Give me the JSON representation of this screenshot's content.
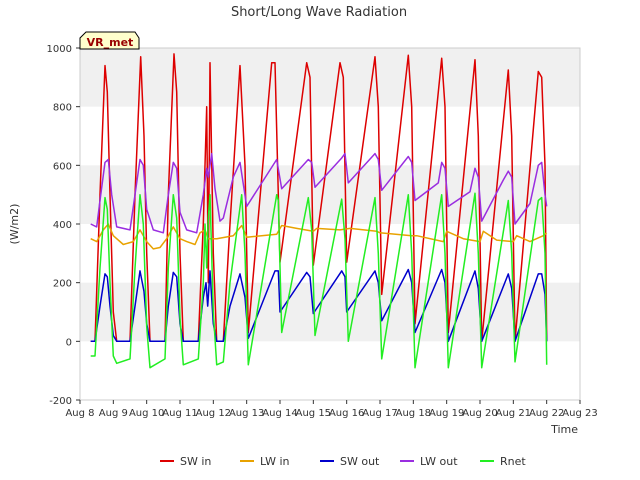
{
  "chart_data": {
    "type": "line",
    "title": "Short/Long Wave Radiation",
    "xlabel": "Time",
    "ylabel": "(W/m2)",
    "station_label": "VR_met",
    "xlim": [
      8,
      23
    ],
    "ylim": [
      -200,
      1000
    ],
    "grid": "horizontal bands",
    "legend_position": "bottom",
    "x_ticks": [
      {
        "value": 8,
        "label": "Aug 8"
      },
      {
        "value": 9,
        "label": "Aug 9"
      },
      {
        "value": 10,
        "label": "Aug 10"
      },
      {
        "value": 11,
        "label": "Aug 11"
      },
      {
        "value": 12,
        "label": "Aug 12"
      },
      {
        "value": 13,
        "label": "Aug 13"
      },
      {
        "value": 14,
        "label": "Aug 14"
      },
      {
        "value": 15,
        "label": "Aug 15"
      },
      {
        "value": 16,
        "label": "Aug 16"
      },
      {
        "value": 17,
        "label": "Aug 17"
      },
      {
        "value": 18,
        "label": "Aug 18"
      },
      {
        "value": 19,
        "label": "Aug 19"
      },
      {
        "value": 20,
        "label": "Aug 20"
      },
      {
        "value": 21,
        "label": "Aug 21"
      },
      {
        "value": 22,
        "label": "Aug 22"
      },
      {
        "value": 23,
        "label": "Aug 23"
      }
    ],
    "y_ticks": [
      -200,
      0,
      200,
      400,
      600,
      800,
      1000
    ],
    "series": [
      {
        "name": "SW in",
        "color": "#dd0000",
        "points": [
          [
            8.32,
            0
          ],
          [
            8.45,
            0
          ],
          [
            8.6,
            500
          ],
          [
            8.75,
            940
          ],
          [
            8.82,
            850
          ],
          [
            8.9,
            500
          ],
          [
            9.0,
            100
          ],
          [
            9.1,
            0
          ],
          [
            9.5,
            0
          ],
          [
            9.65,
            500
          ],
          [
            9.82,
            970
          ],
          [
            9.92,
            700
          ],
          [
            10.0,
            300
          ],
          [
            10.1,
            0
          ],
          [
            10.55,
            0
          ],
          [
            10.65,
            500
          ],
          [
            10.82,
            980
          ],
          [
            10.9,
            850
          ],
          [
            11.0,
            300
          ],
          [
            11.1,
            0
          ],
          [
            11.55,
            0
          ],
          [
            11.7,
            400
          ],
          [
            11.8,
            800
          ],
          [
            11.85,
            200
          ],
          [
            11.9,
            950
          ],
          [
            12.0,
            300
          ],
          [
            12.1,
            0
          ],
          [
            12.3,
            0
          ],
          [
            12.5,
            400
          ],
          [
            12.8,
            940
          ],
          [
            12.95,
            600
          ],
          [
            13.05,
            30
          ],
          [
            13.75,
            950
          ],
          [
            13.85,
            950
          ],
          [
            14.0,
            270
          ],
          [
            14.8,
            950
          ],
          [
            14.9,
            900
          ],
          [
            15.0,
            260
          ],
          [
            15.8,
            950
          ],
          [
            15.9,
            900
          ],
          [
            16.0,
            270
          ],
          [
            16.85,
            970
          ],
          [
            16.95,
            800
          ],
          [
            17.05,
            160
          ],
          [
            17.85,
            975
          ],
          [
            17.95,
            800
          ],
          [
            18.05,
            60
          ],
          [
            18.85,
            965
          ],
          [
            18.95,
            800
          ],
          [
            19.05,
            30
          ],
          [
            19.85,
            960
          ],
          [
            19.95,
            700
          ],
          [
            20.05,
            0
          ],
          [
            20.85,
            925
          ],
          [
            20.95,
            700
          ],
          [
            21.05,
            0
          ],
          [
            21.75,
            920
          ],
          [
            21.85,
            900
          ],
          [
            21.95,
            600
          ],
          [
            22.0,
            0
          ]
        ]
      },
      {
        "name": "LW in",
        "color": "#e8a200",
        "points": [
          [
            8.32,
            350
          ],
          [
            8.5,
            340
          ],
          [
            8.7,
            380
          ],
          [
            8.85,
            400
          ],
          [
            9.0,
            360
          ],
          [
            9.3,
            330
          ],
          [
            9.6,
            340
          ],
          [
            9.8,
            380
          ],
          [
            10.0,
            340
          ],
          [
            10.2,
            315
          ],
          [
            10.4,
            320
          ],
          [
            10.6,
            350
          ],
          [
            10.8,
            390
          ],
          [
            11.0,
            350
          ],
          [
            11.2,
            340
          ],
          [
            11.45,
            330
          ],
          [
            11.6,
            370
          ],
          [
            11.75,
            380
          ],
          [
            11.85,
            350
          ],
          [
            12.1,
            350
          ],
          [
            12.6,
            360
          ],
          [
            12.85,
            395
          ],
          [
            13.0,
            355
          ],
          [
            13.9,
            365
          ],
          [
            14.05,
            395
          ],
          [
            14.5,
            385
          ],
          [
            15.0,
            375
          ],
          [
            15.1,
            385
          ],
          [
            15.8,
            380
          ],
          [
            16.1,
            385
          ],
          [
            16.9,
            375
          ],
          [
            17.0,
            370
          ],
          [
            17.95,
            360
          ],
          [
            18.1,
            360
          ],
          [
            18.9,
            340
          ],
          [
            19.0,
            375
          ],
          [
            19.5,
            350
          ],
          [
            20.0,
            340
          ],
          [
            20.1,
            375
          ],
          [
            20.5,
            345
          ],
          [
            21.0,
            340
          ],
          [
            21.1,
            360
          ],
          [
            21.5,
            340
          ],
          [
            21.9,
            360
          ],
          [
            22.0,
            370
          ]
        ]
      },
      {
        "name": "SW out",
        "color": "#0000cc",
        "points": [
          [
            8.32,
            0
          ],
          [
            8.45,
            0
          ],
          [
            8.6,
            120
          ],
          [
            8.75,
            230
          ],
          [
            8.82,
            220
          ],
          [
            8.9,
            120
          ],
          [
            9.0,
            20
          ],
          [
            9.1,
            0
          ],
          [
            9.5,
            0
          ],
          [
            9.65,
            120
          ],
          [
            9.8,
            240
          ],
          [
            9.92,
            170
          ],
          [
            10.0,
            60
          ],
          [
            10.1,
            0
          ],
          [
            10.55,
            0
          ],
          [
            10.65,
            120
          ],
          [
            10.8,
            235
          ],
          [
            10.9,
            220
          ],
          [
            11.0,
            60
          ],
          [
            11.1,
            0
          ],
          [
            11.55,
            0
          ],
          [
            11.7,
            150
          ],
          [
            11.78,
            200
          ],
          [
            11.83,
            120
          ],
          [
            11.9,
            240
          ],
          [
            12.0,
            60
          ],
          [
            12.1,
            0
          ],
          [
            12.3,
            0
          ],
          [
            12.5,
            120
          ],
          [
            12.8,
            230
          ],
          [
            12.95,
            150
          ],
          [
            13.05,
            10
          ],
          [
            13.85,
            240
          ],
          [
            13.95,
            240
          ],
          [
            14.0,
            100
          ],
          [
            14.8,
            235
          ],
          [
            14.9,
            220
          ],
          [
            15.0,
            95
          ],
          [
            15.85,
            240
          ],
          [
            15.95,
            220
          ],
          [
            16.0,
            100
          ],
          [
            16.85,
            240
          ],
          [
            16.95,
            200
          ],
          [
            17.05,
            70
          ],
          [
            17.85,
            245
          ],
          [
            17.95,
            200
          ],
          [
            18.05,
            30
          ],
          [
            18.85,
            245
          ],
          [
            18.95,
            200
          ],
          [
            19.05,
            0
          ],
          [
            19.85,
            240
          ],
          [
            19.95,
            180
          ],
          [
            20.05,
            0
          ],
          [
            20.85,
            230
          ],
          [
            20.95,
            180
          ],
          [
            21.05,
            0
          ],
          [
            21.75,
            230
          ],
          [
            21.85,
            230
          ],
          [
            21.95,
            160
          ],
          [
            22.0,
            0
          ]
        ]
      },
      {
        "name": "LW out",
        "color": "#9a2ee0",
        "points": [
          [
            8.32,
            400
          ],
          [
            8.5,
            390
          ],
          [
            8.6,
            480
          ],
          [
            8.75,
            610
          ],
          [
            8.85,
            620
          ],
          [
            8.95,
            500
          ],
          [
            9.1,
            390
          ],
          [
            9.5,
            380
          ],
          [
            9.65,
            500
          ],
          [
            9.8,
            620
          ],
          [
            9.9,
            600
          ],
          [
            10.0,
            450
          ],
          [
            10.2,
            380
          ],
          [
            10.5,
            370
          ],
          [
            10.65,
            500
          ],
          [
            10.8,
            610
          ],
          [
            10.9,
            590
          ],
          [
            11.0,
            440
          ],
          [
            11.2,
            380
          ],
          [
            11.5,
            370
          ],
          [
            11.7,
            500
          ],
          [
            11.8,
            590
          ],
          [
            11.85,
            560
          ],
          [
            11.95,
            640
          ],
          [
            12.05,
            520
          ],
          [
            12.2,
            410
          ],
          [
            12.3,
            420
          ],
          [
            12.6,
            560
          ],
          [
            12.8,
            610
          ],
          [
            13.0,
            460
          ],
          [
            13.9,
            620
          ],
          [
            14.05,
            520
          ],
          [
            14.85,
            620
          ],
          [
            14.95,
            610
          ],
          [
            15.05,
            525
          ],
          [
            15.85,
            625
          ],
          [
            15.95,
            640
          ],
          [
            16.05,
            540
          ],
          [
            16.85,
            640
          ],
          [
            16.95,
            620
          ],
          [
            17.05,
            515
          ],
          [
            17.85,
            630
          ],
          [
            17.95,
            610
          ],
          [
            18.05,
            480
          ],
          [
            18.75,
            540
          ],
          [
            18.85,
            610
          ],
          [
            18.95,
            590
          ],
          [
            19.05,
            460
          ],
          [
            19.7,
            510
          ],
          [
            19.85,
            590
          ],
          [
            19.95,
            560
          ],
          [
            20.05,
            410
          ],
          [
            20.7,
            550
          ],
          [
            20.85,
            580
          ],
          [
            20.95,
            560
          ],
          [
            21.05,
            400
          ],
          [
            21.5,
            470
          ],
          [
            21.75,
            600
          ],
          [
            21.85,
            610
          ],
          [
            21.95,
            500
          ],
          [
            22.0,
            460
          ]
        ]
      },
      {
        "name": "Rnet",
        "color": "#22ee22",
        "points": [
          [
            8.32,
            -50
          ],
          [
            8.45,
            -50
          ],
          [
            8.6,
            250
          ],
          [
            8.75,
            490
          ],
          [
            8.82,
            450
          ],
          [
            8.9,
            200
          ],
          [
            9.0,
            -50
          ],
          [
            9.1,
            -75
          ],
          [
            9.5,
            -60
          ],
          [
            9.65,
            250
          ],
          [
            9.8,
            500
          ],
          [
            9.9,
            400
          ],
          [
            10.0,
            50
          ],
          [
            10.1,
            -90
          ],
          [
            10.55,
            -60
          ],
          [
            10.65,
            250
          ],
          [
            10.8,
            500
          ],
          [
            10.9,
            420
          ],
          [
            11.0,
            80
          ],
          [
            11.1,
            -80
          ],
          [
            11.55,
            -60
          ],
          [
            11.7,
            200
          ],
          [
            11.75,
            400
          ],
          [
            11.8,
            250
          ],
          [
            11.85,
            420
          ],
          [
            11.9,
            500
          ],
          [
            12.0,
            100
          ],
          [
            12.1,
            -80
          ],
          [
            12.3,
            -70
          ],
          [
            12.5,
            200
          ],
          [
            12.85,
            500
          ],
          [
            12.95,
            300
          ],
          [
            13.05,
            -80
          ],
          [
            13.9,
            500
          ],
          [
            13.95,
            480
          ],
          [
            14.05,
            30
          ],
          [
            14.85,
            490
          ],
          [
            14.95,
            380
          ],
          [
            15.05,
            20
          ],
          [
            15.85,
            485
          ],
          [
            15.95,
            350
          ],
          [
            16.05,
            0
          ],
          [
            16.85,
            490
          ],
          [
            16.95,
            300
          ],
          [
            17.05,
            -60
          ],
          [
            17.85,
            500
          ],
          [
            17.95,
            300
          ],
          [
            18.05,
            -90
          ],
          [
            18.85,
            500
          ],
          [
            18.95,
            300
          ],
          [
            19.05,
            -90
          ],
          [
            19.85,
            505
          ],
          [
            19.95,
            300
          ],
          [
            20.05,
            -90
          ],
          [
            20.85,
            480
          ],
          [
            20.95,
            300
          ],
          [
            21.05,
            -70
          ],
          [
            21.75,
            480
          ],
          [
            21.85,
            490
          ],
          [
            21.95,
            300
          ],
          [
            22.0,
            -80
          ]
        ]
      }
    ]
  }
}
